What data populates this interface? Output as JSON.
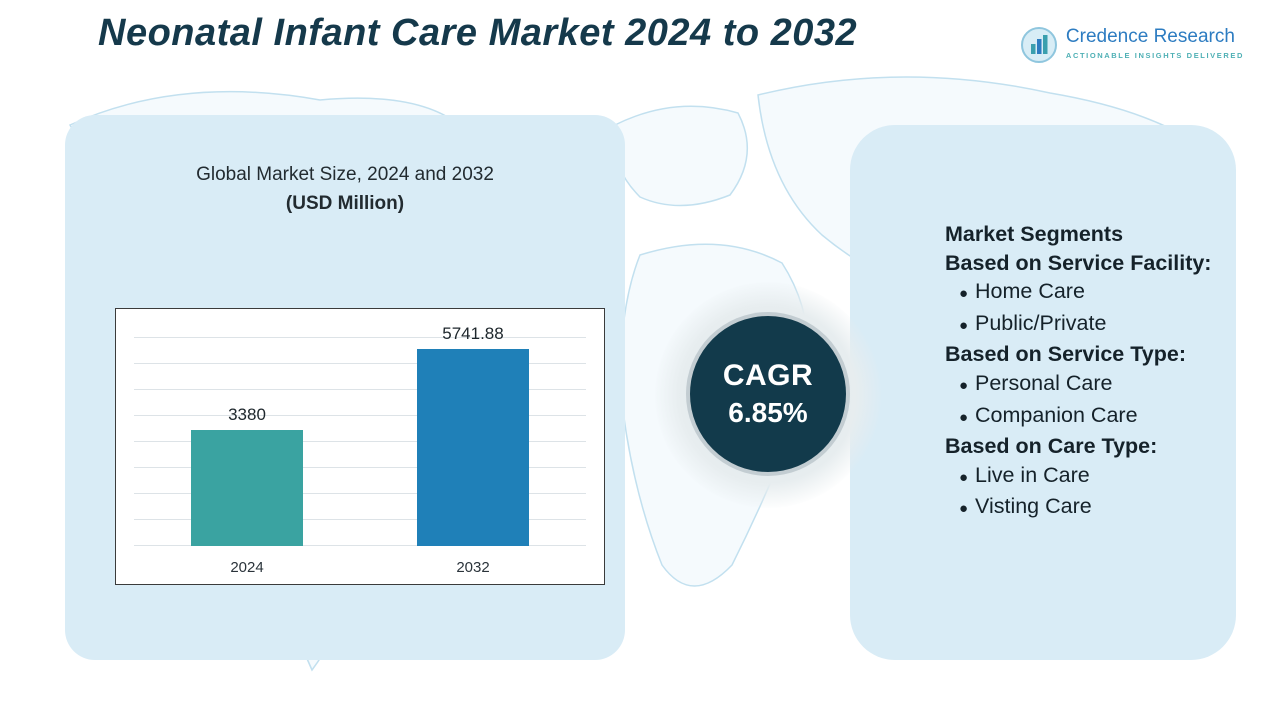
{
  "page": {
    "title": "Neonatal Infant Care Market 2024 to 2032"
  },
  "logo": {
    "name": "Credence Research",
    "tagline": "Actionable Insights Delivered"
  },
  "chart_panel": {
    "subtitle_line1": "Global Market Size, 2024 and 2032",
    "subtitle_line2": "(USD Million)"
  },
  "chart_data": {
    "type": "bar",
    "title": "Global Market Size, 2024 and 2032 (USD Million)",
    "categories": [
      "2024",
      "2032"
    ],
    "values": [
      3380,
      5741.88
    ],
    "value_labels": [
      "3380",
      "5741.88"
    ],
    "bar_colors": [
      "#3aa3a1",
      "#1f80b8"
    ],
    "ylabel": "",
    "xlabel": "",
    "ylim": [
      0,
      6500
    ],
    "grid": true,
    "legend": "none"
  },
  "cagr": {
    "label": "CAGR",
    "value": "6.85%"
  },
  "segments": {
    "title": "Market Segments",
    "groups": [
      {
        "heading": "Based on Service Facility:",
        "items": [
          "Home Care",
          "Public/Private"
        ]
      },
      {
        "heading": "Based on Service Type:",
        "items": [
          "Personal Care",
          "Companion Care"
        ]
      },
      {
        "heading": "Based on Care Type:",
        "items": [
          "Live in Care",
          "Visting Care"
        ]
      }
    ]
  },
  "colors": {
    "title_text": "#15394b",
    "panel_background": "#d9ecf6",
    "cagr_circle": "#123a4b",
    "bar_2024": "#3aa3a1",
    "bar_2032": "#1f80b8",
    "logo_blue": "#2d7cc1",
    "logo_teal": "#4fb0b5"
  }
}
